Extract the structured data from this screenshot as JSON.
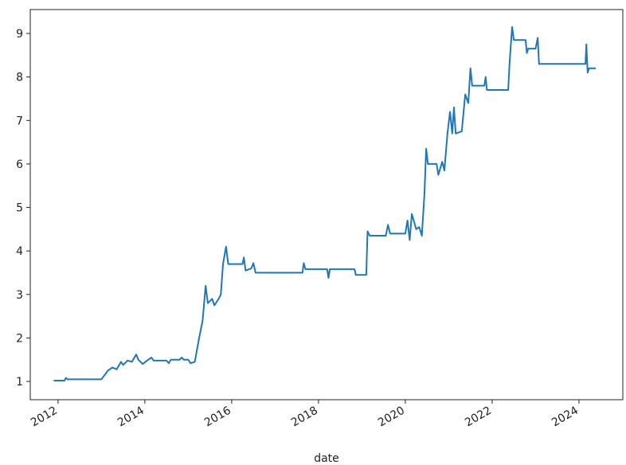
{
  "chart_data": {
    "type": "line",
    "x_label": "date",
    "x": [
      2011.9,
      2012.15,
      2012.18,
      2012.22,
      2013.0,
      2013.15,
      2013.25,
      2013.35,
      2013.45,
      2013.5,
      2013.6,
      2013.7,
      2013.8,
      2013.85,
      2013.95,
      2014.05,
      2014.15,
      2014.2,
      2014.5,
      2014.55,
      2014.6,
      2014.8,
      2014.85,
      2014.9,
      2015.0,
      2015.05,
      2015.15,
      2015.25,
      2015.33,
      2015.4,
      2015.45,
      2015.55,
      2015.6,
      2015.7,
      2015.75,
      2015.8,
      2015.87,
      2015.92,
      2016.25,
      2016.28,
      2016.32,
      2016.45,
      2016.5,
      2016.55,
      2017.63,
      2017.66,
      2017.7,
      2018.2,
      2018.23,
      2018.26,
      2018.83,
      2018.86,
      2019.1,
      2019.13,
      2019.18,
      2019.55,
      2019.6,
      2019.65,
      2020.0,
      2020.05,
      2020.1,
      2020.15,
      2020.25,
      2020.32,
      2020.38,
      2020.44,
      2020.48,
      2020.52,
      2020.72,
      2020.76,
      2020.85,
      2020.9,
      2020.97,
      2021.03,
      2021.08,
      2021.12,
      2021.16,
      2021.3,
      2021.38,
      2021.45,
      2021.5,
      2021.54,
      2021.82,
      2021.85,
      2021.88,
      2022.37,
      2022.4,
      2022.46,
      2022.5,
      2022.77,
      2022.8,
      2022.83,
      2023.0,
      2023.05,
      2023.08,
      2024.15,
      2024.17,
      2024.2,
      2024.23,
      2024.39
    ],
    "values": [
      1.02,
      1.02,
      1.08,
      1.05,
      1.05,
      1.25,
      1.32,
      1.28,
      1.45,
      1.38,
      1.48,
      1.45,
      1.62,
      1.5,
      1.4,
      1.48,
      1.55,
      1.48,
      1.48,
      1.42,
      1.5,
      1.5,
      1.55,
      1.5,
      1.5,
      1.42,
      1.45,
      2.0,
      2.4,
      3.2,
      2.8,
      2.9,
      2.75,
      2.9,
      3.0,
      3.7,
      4.1,
      3.7,
      3.7,
      3.85,
      3.55,
      3.6,
      3.72,
      3.5,
      3.5,
      3.72,
      3.58,
      3.58,
      3.38,
      3.58,
      3.58,
      3.45,
      3.45,
      4.45,
      4.35,
      4.35,
      4.6,
      4.4,
      4.4,
      4.7,
      4.25,
      4.85,
      4.5,
      4.55,
      4.35,
      5.3,
      6.35,
      6.0,
      6.0,
      5.75,
      6.05,
      5.85,
      6.7,
      7.2,
      6.7,
      7.3,
      6.7,
      6.75,
      7.6,
      7.4,
      8.2,
      7.8,
      7.8,
      8.0,
      7.7,
      7.7,
      8.3,
      9.15,
      8.85,
      8.85,
      8.55,
      8.65,
      8.65,
      8.9,
      8.3,
      8.3,
      8.75,
      8.1,
      8.2,
      8.2
    ],
    "color": "#1f77b4",
    "xlim": [
      2011.36,
      2025.01
    ],
    "xticks": [
      2012,
      2014,
      2016,
      2018,
      2020,
      2022,
      2024
    ],
    "ylim": [
      0.58,
      9.55
    ],
    "yticks": [
      1,
      2,
      3,
      4,
      5,
      6,
      7,
      8,
      9
    ]
  }
}
